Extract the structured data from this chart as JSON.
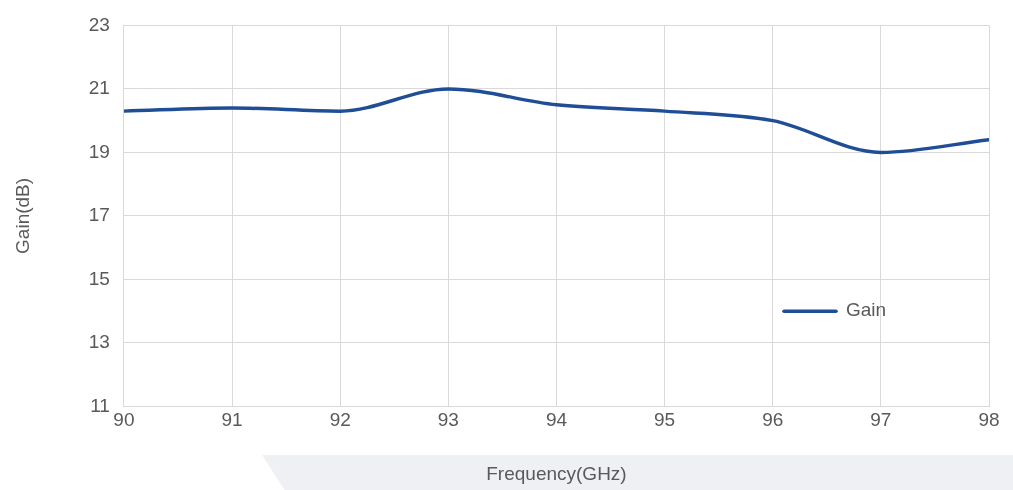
{
  "chart_data": {
    "type": "line",
    "xlabel": "Frequency(GHz)",
    "ylabel": "Gain(dB)",
    "x": [
      90,
      91,
      92,
      93,
      94,
      95,
      96,
      97,
      98
    ],
    "series": [
      {
        "name": "Gain",
        "color": "#1f4e96",
        "values": [
          20.3,
          20.4,
          20.3,
          21.0,
          20.5,
          20.3,
          20.0,
          19.0,
          19.4
        ]
      }
    ],
    "xlim": [
      90,
      98
    ],
    "xticks": [
      90,
      91,
      92,
      93,
      94,
      95,
      96,
      97,
      98
    ],
    "ylim": [
      11,
      23
    ],
    "yticks": [
      11,
      13,
      15,
      17,
      19,
      21,
      23
    ],
    "grid": true,
    "legend": "center right",
    "marker": "none",
    "line_style": "solid"
  }
}
